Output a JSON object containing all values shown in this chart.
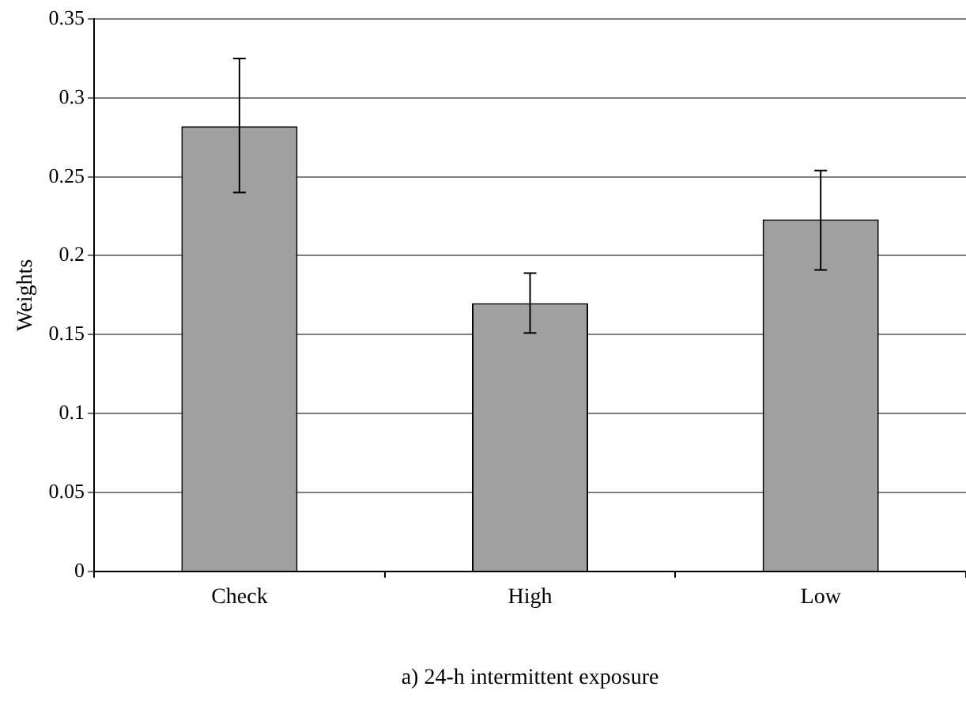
{
  "chart_data": {
    "type": "bar",
    "xlabel": "a) 24-h intermittent exposure",
    "ylabel": "Weights",
    "categories": [
      "Check",
      "High",
      "Low"
    ],
    "values": [
      0.282,
      0.17,
      0.223
    ],
    "errors": [
      [
        0.24,
        0.325
      ],
      [
        0.151,
        0.189
      ],
      [
        0.191,
        0.254
      ]
    ],
    "color": "#a0a0a0",
    "ylim": [
      0,
      0.35
    ],
    "yticks": [
      0,
      0.05,
      0.1,
      0.15,
      0.2,
      0.25,
      0.3,
      0.35
    ],
    "grid": "y",
    "legend": false
  }
}
